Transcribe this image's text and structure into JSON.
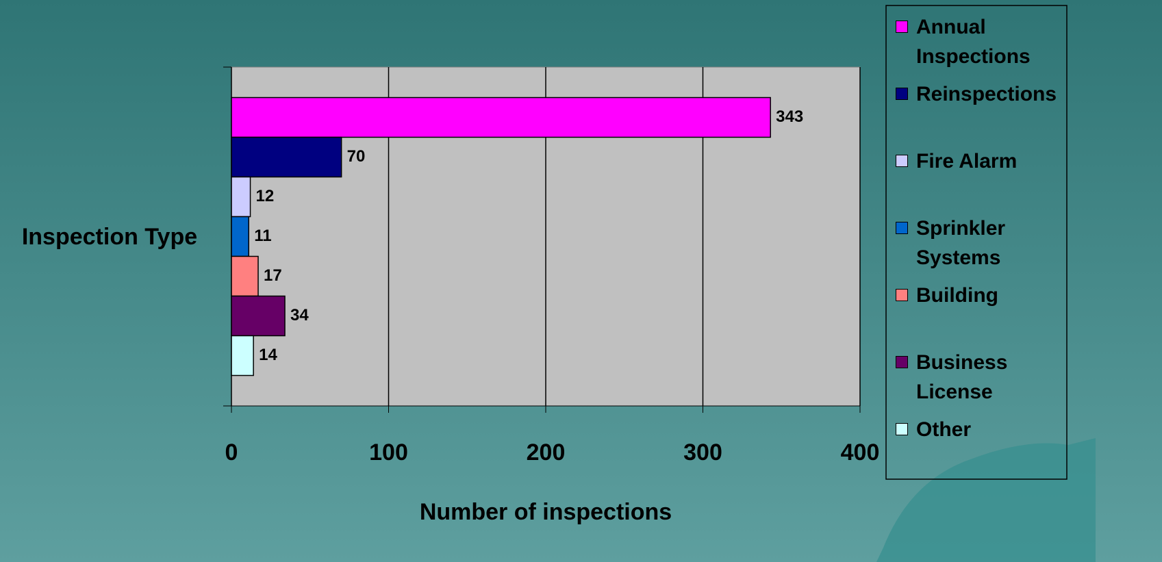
{
  "chart_data": {
    "type": "bar",
    "orientation": "horizontal",
    "xlabel": "Number of inspections",
    "ylabel": "Inspection Type",
    "xlim": [
      0,
      400
    ],
    "xticks": [
      0,
      100,
      200,
      300,
      400
    ],
    "grid": true,
    "series": [
      {
        "name": "Annual Inspections",
        "color": "#ff00ff",
        "values": [
          343
        ]
      },
      {
        "name": "Reinspections",
        "color": "#000080",
        "values": [
          70
        ]
      },
      {
        "name": "Fire Alarm",
        "color": "#ccccff",
        "values": [
          12
        ]
      },
      {
        "name": "Sprinkler Systems",
        "color": "#0066cc",
        "values": [
          11
        ]
      },
      {
        "name": "Building",
        "color": "#ff8080",
        "values": [
          17
        ]
      },
      {
        "name": "Business License",
        "color": "#660066",
        "values": [
          34
        ]
      },
      {
        "name": "Other",
        "color": "#ccffff",
        "values": [
          14
        ]
      }
    ],
    "legend": "right"
  }
}
